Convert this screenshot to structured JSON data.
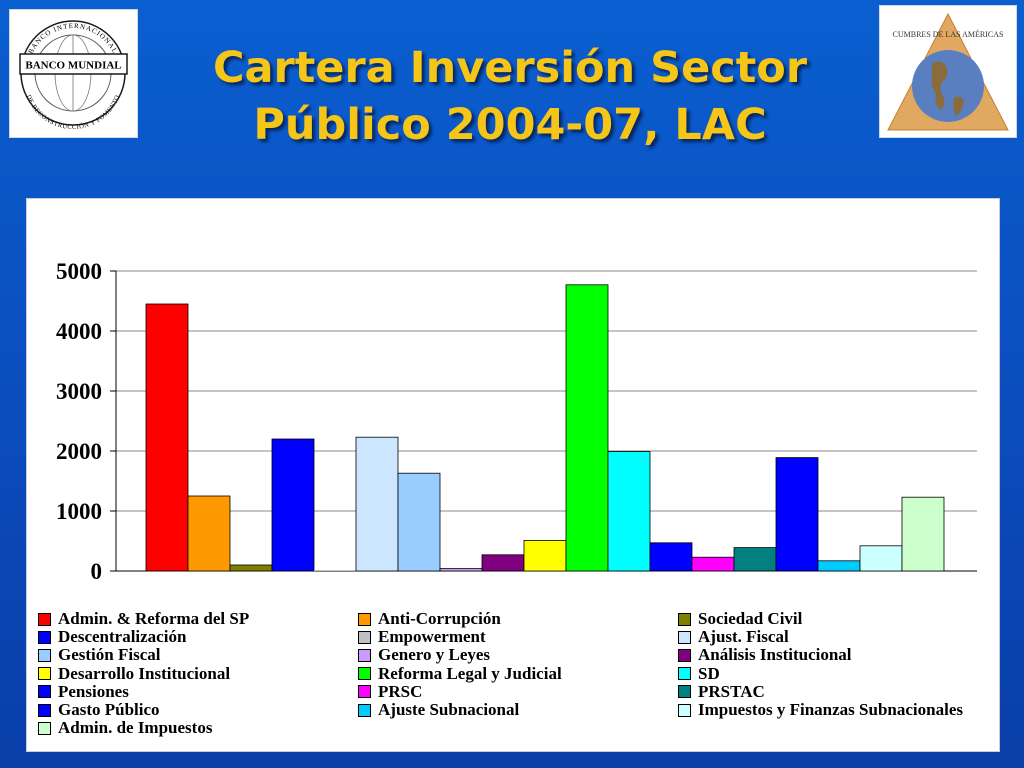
{
  "header": {
    "title_line1": "Cartera Inversión Sector",
    "title_line2": "Público 2004-07, LAC"
  },
  "logos": {
    "left": {
      "name": "Banco Mundial",
      "text_top": "BANCO INTERNACIONAL",
      "text_center": "BANCO MUNDIAL",
      "text_bottom": "DE RECONSTRUCCIÓN Y FOMENTO"
    },
    "right": {
      "name": "Cumbres de las Américas",
      "text": "CUMBRES DE LAS AMÉRICAS"
    }
  },
  "chart_data": {
    "type": "bar",
    "title": "",
    "xlabel": "",
    "ylabel": "",
    "ylim": [
      0,
      5000
    ],
    "yticks": [
      "0",
      "1000",
      "2000",
      "3000",
      "4000",
      "5000"
    ],
    "grid": true,
    "legend_position": "bottom",
    "series": [
      {
        "name": "Admin. & Reforma del SP",
        "value": 4450,
        "color": "#ff0000"
      },
      {
        "name": "Anti-Corrupción",
        "value": 1250,
        "color": "#ff9900"
      },
      {
        "name": "Sociedad Civil",
        "value": 100,
        "color": "#808000"
      },
      {
        "name": "Descentralización",
        "value": 2200,
        "color": "#0000ff"
      },
      {
        "name": "Empowerment",
        "value": 0,
        "color": "#c0c0c0"
      },
      {
        "name": "Ajust. Fiscal",
        "value": 2230,
        "color": "#cce6ff"
      },
      {
        "name": "Gestión Fiscal",
        "value": 1630,
        "color": "#99ccff"
      },
      {
        "name": "Genero y Leyes",
        "value": 40,
        "color": "#cc99ff"
      },
      {
        "name": "Análisis Institucional",
        "value": 270,
        "color": "#800080"
      },
      {
        "name": "Desarrollo Institucional",
        "value": 510,
        "color": "#ffff00"
      },
      {
        "name": "Reforma Legal y Judicial",
        "value": 4770,
        "color": "#00ff00"
      },
      {
        "name": "SD",
        "value": 1990,
        "color": "#00ffff"
      },
      {
        "name": "Pensiones",
        "value": 470,
        "color": "#0000ff"
      },
      {
        "name": "PRSC",
        "value": 230,
        "color": "#ff00ff"
      },
      {
        "name": "PRSTAC",
        "value": 390,
        "color": "#008080"
      },
      {
        "name": "Gasto Público",
        "value": 1890,
        "color": "#0000ff"
      },
      {
        "name": "Ajuste Subnacional",
        "value": 170,
        "color": "#00ccff"
      },
      {
        "name": "Impuestos y Finanzas Subnacionales",
        "value": 420,
        "color": "#ccffff"
      },
      {
        "name": "Admin. de Impuestos",
        "value": 1230,
        "color": "#ccffcc"
      }
    ]
  }
}
